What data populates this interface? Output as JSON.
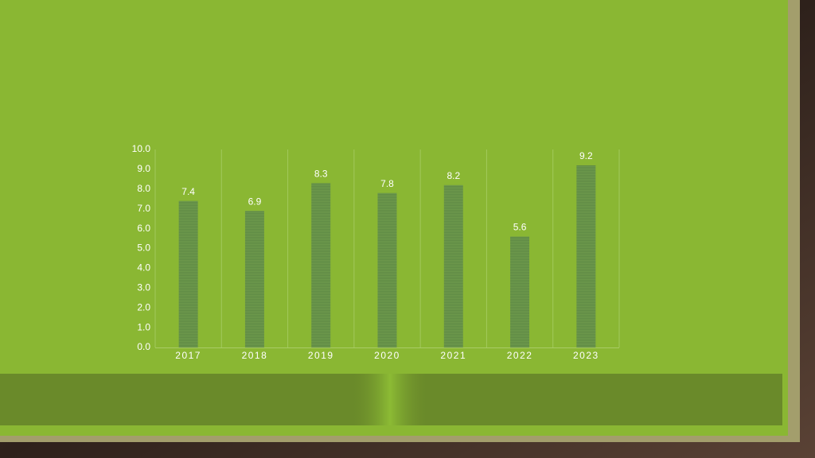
{
  "chart_data": {
    "type": "bar",
    "categories": [
      "2017",
      "2018",
      "2019",
      "2020",
      "2021",
      "2022",
      "2023"
    ],
    "values": [
      7.4,
      6.9,
      8.3,
      7.8,
      8.2,
      5.6,
      9.2
    ],
    "color": "#6e9a4c",
    "ylim": [
      0,
      10
    ],
    "yticks": [
      {
        "value": 0,
        "label": "0.0"
      },
      {
        "value": 1,
        "label": "1.0"
      },
      {
        "value": 2,
        "label": "2.0"
      },
      {
        "value": 3,
        "label": "3.0"
      },
      {
        "value": 4,
        "label": "4.0"
      },
      {
        "value": 5,
        "label": "5.0"
      },
      {
        "value": 6,
        "label": "6.0"
      },
      {
        "value": 7,
        "label": "7.0"
      },
      {
        "value": 8,
        "label": "8.0"
      },
      {
        "value": 9,
        "label": "9.0"
      },
      {
        "value": 10,
        "label": "10.0"
      }
    ],
    "grid": false
  }
}
